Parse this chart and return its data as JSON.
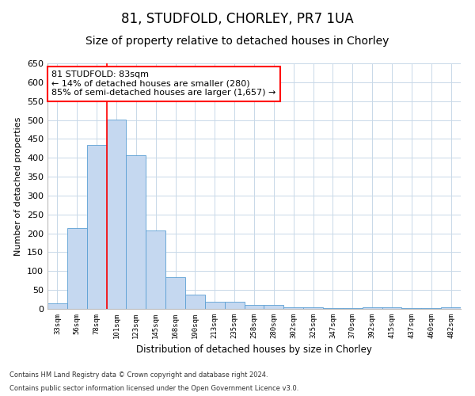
{
  "title1": "81, STUDFOLD, CHORLEY, PR7 1UA",
  "title2": "Size of property relative to detached houses in Chorley",
  "xlabel": "Distribution of detached houses by size in Chorley",
  "ylabel": "Number of detached properties",
  "categories": [
    "33sqm",
    "56sqm",
    "78sqm",
    "101sqm",
    "123sqm",
    "145sqm",
    "168sqm",
    "190sqm",
    "213sqm",
    "235sqm",
    "258sqm",
    "280sqm",
    "302sqm",
    "325sqm",
    "347sqm",
    "370sqm",
    "392sqm",
    "415sqm",
    "437sqm",
    "460sqm",
    "482sqm"
  ],
  "values": [
    15,
    213,
    435,
    502,
    407,
    207,
    84,
    38,
    18,
    18,
    10,
    10,
    5,
    5,
    3,
    3,
    5,
    5,
    2,
    2,
    4
  ],
  "bar_color": "#c5d8f0",
  "bar_edge_color": "#5a9fd4",
  "annotation_text": "81 STUDFOLD: 83sqm\n← 14% of detached houses are smaller (280)\n85% of semi-detached houses are larger (1,657) →",
  "annotation_box_color": "white",
  "annotation_box_edge": "red",
  "footer1": "Contains HM Land Registry data © Crown copyright and database right 2024.",
  "footer2": "Contains public sector information licensed under the Open Government Licence v3.0.",
  "ylim": [
    0,
    650
  ],
  "yticks": [
    0,
    50,
    100,
    150,
    200,
    250,
    300,
    350,
    400,
    450,
    500,
    550,
    600,
    650
  ],
  "fig_bg": "#ffffff",
  "grid_color": "#c8d8e8",
  "title1_fontsize": 12,
  "title2_fontsize": 10,
  "red_line_index": 2.5
}
